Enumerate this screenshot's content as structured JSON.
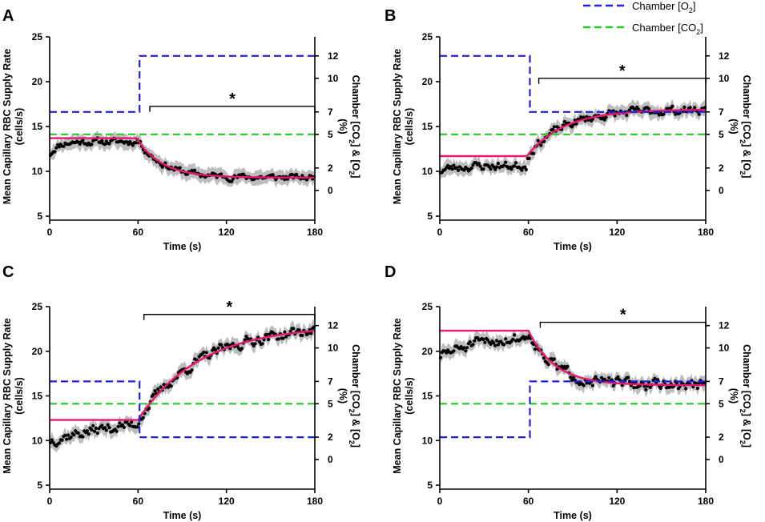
{
  "legend": {
    "o2_prefix": "Chamber [O",
    "o2_sub": "2",
    "o2_suffix": "]",
    "co2_prefix": "Chamber [CO",
    "co2_sub": "2",
    "co2_suffix": "]",
    "o2_color": "#1f1fe0",
    "co2_color": "#22cc22"
  },
  "colors": {
    "fit": "#e8186f",
    "band": "#bdbdbd",
    "points": "#000000",
    "axis": "#000000"
  },
  "axis_text": {
    "xlabel": "Time (s)",
    "ylabel_line1": "Mean Capillary RBC Supply Rate",
    "ylabel_line2": "(cells/s)",
    "y2label_line1_a": "Chamber [CO",
    "y2label_line1_sub1": "2",
    "y2label_line1_b": "] & [O",
    "y2label_line1_sub2": "2",
    "y2label_line1_c": "]",
    "y2label_line2": "(%)",
    "significance": "*"
  },
  "chart_data": [
    {
      "panel": "A",
      "type": "line",
      "x_range": [
        0,
        180
      ],
      "x_ticks": [
        0,
        60,
        120,
        180
      ],
      "ylim": [
        5,
        25
      ],
      "y_ticks": [
        5,
        10,
        15,
        20,
        25
      ],
      "y2lim": [
        -2.3,
        13.7
      ],
      "y2_ticks": [
        0,
        2,
        5,
        7,
        10,
        12
      ],
      "o2_series": {
        "x": [
          0,
          61,
          61,
          180
        ],
        "y": [
          7,
          7,
          12,
          12
        ]
      },
      "co2_series": {
        "x": [
          0,
          180
        ],
        "y": [
          5,
          5
        ]
      },
      "fit": {
        "baseline": 13.7,
        "plateau": 9.3,
        "t0": 59,
        "tau": 17
      },
      "data_series": {
        "start": 11.8,
        "base": 13.3,
        "base_rise": 5,
        "amplitude": 0.3,
        "seed": 11
      },
      "significance_bar": {
        "x_start": 68,
        "x_end": 180,
        "y_right": 7.5
      }
    },
    {
      "panel": "B",
      "type": "line",
      "x_range": [
        0,
        180
      ],
      "x_ticks": [
        0,
        60,
        120,
        180
      ],
      "ylim": [
        5,
        25
      ],
      "y_ticks": [
        5,
        10,
        15,
        20,
        25
      ],
      "y2lim": [
        -2.3,
        13.7
      ],
      "y2_ticks": [
        0,
        2,
        5,
        7,
        10,
        12
      ],
      "o2_series": {
        "x": [
          0,
          61,
          61,
          180
        ],
        "y": [
          12,
          12,
          7,
          7
        ]
      },
      "co2_series": {
        "x": [
          0,
          180
        ],
        "y": [
          5,
          5
        ]
      },
      "fit": {
        "baseline": 11.7,
        "plateau": 16.9,
        "t0": 59,
        "tau": 25
      },
      "data_series": {
        "start": 10.0,
        "base": 10.6,
        "base_rise": 8,
        "amplitude": 0.4,
        "seed": 23
      },
      "significance_bar": {
        "x_start": 67,
        "x_end": 180,
        "y_right": 10
      }
    },
    {
      "panel": "C",
      "type": "line",
      "x_range": [
        0,
        180
      ],
      "x_ticks": [
        0,
        60,
        120,
        180
      ],
      "ylim": [
        5,
        25
      ],
      "y_ticks": [
        5,
        10,
        15,
        20,
        25
      ],
      "y2lim": [
        -2.3,
        13.7
      ],
      "y2_ticks": [
        0,
        2,
        5,
        7,
        10,
        12
      ],
      "o2_series": {
        "x": [
          0,
          61,
          61,
          180
        ],
        "y": [
          7,
          7,
          2,
          2
        ]
      },
      "co2_series": {
        "x": [
          0,
          180
        ],
        "y": [
          5,
          5
        ]
      },
      "fit": {
        "baseline": 12.3,
        "plateau": 22.9,
        "t0": 60,
        "tau": 42
      },
      "data_series": {
        "start": 10.0,
        "base": 12.9,
        "base_rise": 60,
        "amplitude": 0.5,
        "seed": 37
      },
      "significance_bar": {
        "x_start": 64,
        "x_end": 180,
        "y_right": 13
      }
    },
    {
      "panel": "D",
      "type": "line",
      "x_range": [
        0,
        180
      ],
      "x_ticks": [
        0,
        60,
        120,
        180
      ],
      "ylim": [
        5,
        25
      ],
      "y_ticks": [
        5,
        10,
        15,
        20,
        25
      ],
      "y2lim": [
        -2.3,
        13.7
      ],
      "y2_ticks": [
        0,
        2,
        5,
        7,
        10,
        12
      ],
      "o2_series": {
        "x": [
          0,
          61,
          61,
          180
        ],
        "y": [
          2,
          2,
          7,
          7
        ]
      },
      "co2_series": {
        "x": [
          0,
          180
        ],
        "y": [
          5,
          5
        ]
      },
      "fit": {
        "baseline": 22.3,
        "plateau": 16.2,
        "t0": 60,
        "tau": 18
      },
      "data_series": {
        "start": 19.5,
        "base": 22.0,
        "base_rise": 35,
        "amplitude": 0.5,
        "seed": 51
      },
      "significance_bar": {
        "x_start": 68,
        "x_end": 180,
        "y_right": 12.3
      }
    }
  ]
}
